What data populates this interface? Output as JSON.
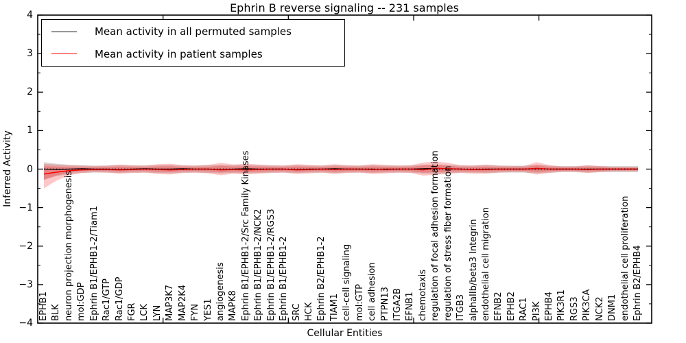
{
  "title": "Ephrin B reverse signaling -- 231 samples",
  "axes": {
    "ylabel": "Inferred Activity",
    "xlabel": "Cellular Entities"
  },
  "legend": {
    "items": [
      {
        "label": "Mean activity in all permuted samples",
        "color": "#000000"
      },
      {
        "label": "Mean activity in patient samples",
        "color": "#ff0000"
      }
    ]
  },
  "chart_data": {
    "type": "line",
    "title": "Ephrin B reverse signaling -- 231 samples",
    "xlabel": "Cellular Entities",
    "ylabel": "Inferred Activity",
    "ylim": [
      -4,
      4
    ],
    "yticks": [
      -4,
      -3,
      -2,
      -1,
      0,
      1,
      2,
      3,
      4
    ],
    "xlim": [
      0,
      49
    ],
    "xticks_major_values": [
      10,
      20,
      30,
      40
    ],
    "grid": false,
    "legend_position": "upper left",
    "zero_line_style": "dotted",
    "categories": [
      "EPHB1",
      "BLK",
      "neuron projection morphogenesis",
      "mol:GDP",
      "Ephrin B1/EPHB1-2/Tiam1",
      "Rac1/GTP",
      "Rac1/GDP",
      "FGR",
      "LCK",
      "LYN",
      "MAP3K7",
      "MAP2K4",
      "FYN",
      "YES1",
      "angiogenesis",
      "MAPK8",
      "Ephrin B1/EPHB1-2/Src Family Kinases",
      "Ephrin B1/EPHB1-2/NCK2",
      "Ephrin B1/EPHB1-2/RGS3",
      "Ephrin B1/EPHB1-2",
      "SRC",
      "HCK",
      "Ephrin B2/EPHB1-2",
      "TIAM1",
      "cell-cell signaling",
      "mol:GTP",
      "cell adhesion",
      "PTPN13",
      "ITGA2B",
      "EFNB1",
      "chemotaxis",
      "regulation of focal adhesion formation",
      "regulation of stress fiber formation",
      "ITGB3",
      "alphaIIb/beta3 Integrin",
      "endothelial cell migration",
      "EFNB2",
      "EPHB2",
      "RAC1",
      "PI3K",
      "EPHB4",
      "PIK3R1",
      "RGS3",
      "PIK3CA",
      "NCK2",
      "DNM1",
      "endothelial cell proliferation",
      "Ephrin B2/EPHB4"
    ],
    "series": [
      {
        "name": "Mean activity in all permuted samples",
        "color": "#000000",
        "width": 1.3,
        "values": [
          0,
          -0.01,
          0,
          0.01,
          0,
          0,
          -0.01,
          0,
          0.01,
          0,
          0,
          0.01,
          0,
          0,
          -0.01,
          0,
          0.01,
          0,
          0,
          0,
          -0.01,
          0,
          0,
          0.01,
          0,
          0,
          0,
          -0.01,
          0,
          0,
          0.01,
          0.02,
          0.01,
          0,
          -0.01,
          0,
          0,
          0,
          0,
          0.01,
          0,
          0,
          0,
          0,
          0,
          0,
          0,
          0
        ]
      },
      {
        "name": "Mean activity in patient samples",
        "color": "#ff0000",
        "width": 1.5,
        "values": [
          -0.13,
          -0.08,
          -0.04,
          -0.02,
          -0.01,
          -0.01,
          -0.02,
          -0.01,
          0,
          -0.01,
          -0.02,
          -0.01,
          0,
          0,
          -0.02,
          -0.01,
          -0.02,
          -0.01,
          0,
          0,
          -0.02,
          -0.01,
          0,
          -0.01,
          0,
          0,
          -0.01,
          0,
          0,
          0,
          -0.02,
          0.02,
          0.01,
          0,
          -0.01,
          -0.01,
          0,
          0,
          0,
          0.02,
          0,
          0,
          0,
          -0.01,
          0,
          0,
          0,
          0
        ]
      }
    ],
    "bands": [
      {
        "name": "permuted-spread",
        "color": "#808080",
        "opacity": 0.3,
        "upper": [
          0.18,
          0.14,
          0.11,
          0.1,
          0.09,
          0.09,
          0.1,
          0.09,
          0.09,
          0.1,
          0.11,
          0.09,
          0.09,
          0.1,
          0.11,
          0.1,
          0.11,
          0.1,
          0.09,
          0.09,
          0.1,
          0.09,
          0.09,
          0.1,
          0.09,
          0.09,
          0.1,
          0.09,
          0.09,
          0.09,
          0.11,
          0.12,
          0.11,
          0.09,
          0.09,
          0.1,
          0.09,
          0.09,
          0.09,
          0.11,
          0.09,
          0.08,
          0.08,
          0.09,
          0.08,
          0.08,
          0.08,
          0.08
        ],
        "lower": [
          -0.28,
          -0.18,
          -0.13,
          -0.1,
          -0.09,
          -0.09,
          -0.1,
          -0.09,
          -0.09,
          -0.1,
          -0.11,
          -0.09,
          -0.09,
          -0.1,
          -0.11,
          -0.1,
          -0.11,
          -0.1,
          -0.09,
          -0.09,
          -0.1,
          -0.09,
          -0.09,
          -0.1,
          -0.09,
          -0.09,
          -0.1,
          -0.09,
          -0.09,
          -0.09,
          -0.11,
          -0.12,
          -0.11,
          -0.09,
          -0.09,
          -0.1,
          -0.09,
          -0.09,
          -0.09,
          -0.11,
          -0.09,
          -0.08,
          -0.08,
          -0.09,
          -0.08,
          -0.08,
          -0.08,
          -0.08
        ]
      },
      {
        "name": "patient-spread",
        "color": "#ff0000",
        "opacity": 0.22,
        "inner_scale": 0.55,
        "upper": [
          0.14,
          0.12,
          0.1,
          0.09,
          0.08,
          0.09,
          0.12,
          0.1,
          0.09,
          0.13,
          0.14,
          0.1,
          0.09,
          0.11,
          0.16,
          0.12,
          0.14,
          0.12,
          0.1,
          0.09,
          0.13,
          0.11,
          0.09,
          0.13,
          0.1,
          0.09,
          0.13,
          0.11,
          0.09,
          0.1,
          0.17,
          0.2,
          0.16,
          0.1,
          0.09,
          0.12,
          0.09,
          0.08,
          0.08,
          0.18,
          0.1,
          0.07,
          0.07,
          0.1,
          0.08,
          0.06,
          0.06,
          0.06
        ],
        "lower": [
          -0.5,
          -0.3,
          -0.16,
          -0.1,
          -0.08,
          -0.09,
          -0.12,
          -0.1,
          -0.09,
          -0.13,
          -0.14,
          -0.1,
          -0.09,
          -0.11,
          -0.16,
          -0.12,
          -0.14,
          -0.12,
          -0.1,
          -0.09,
          -0.13,
          -0.11,
          -0.09,
          -0.13,
          -0.1,
          -0.09,
          -0.13,
          -0.11,
          -0.09,
          -0.1,
          -0.17,
          -0.15,
          -0.12,
          -0.1,
          -0.12,
          -0.12,
          -0.09,
          -0.08,
          -0.08,
          -0.14,
          -0.1,
          -0.07,
          -0.07,
          -0.1,
          -0.08,
          -0.06,
          -0.06,
          -0.06
        ]
      }
    ]
  }
}
